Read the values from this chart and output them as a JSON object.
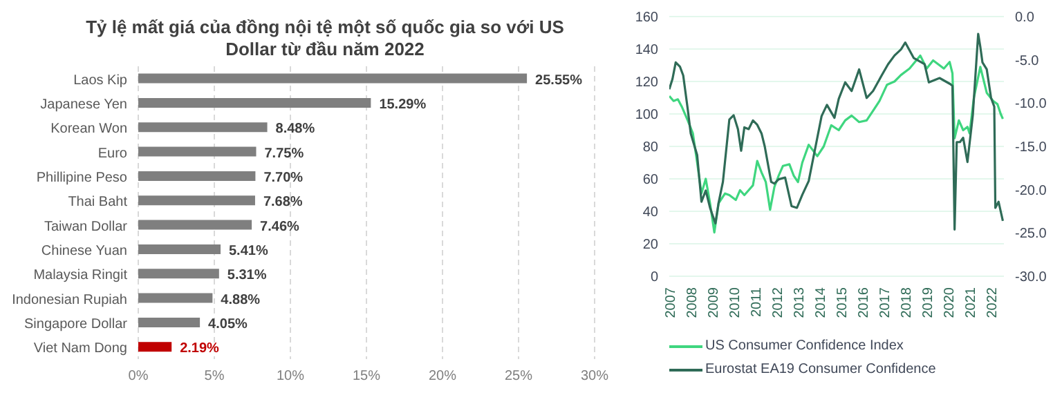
{
  "chart_data": [
    {
      "type": "bar",
      "orientation": "horizontal",
      "title": "Tỷ lệ mất giá của đồng nội tệ một số quốc gia so với US Dollar từ đầu năm 2022",
      "categories": [
        "Laos Kip",
        "Japanese Yen",
        "Korean Won",
        "Euro",
        "Phillipine Peso",
        "Thai Baht",
        "Taiwan Dollar",
        "Chinese Yuan",
        "Malaysia Ringit",
        "Indonesian Rupiah",
        "Singapore Dollar",
        "Viet Nam Dong"
      ],
      "values": [
        25.55,
        15.29,
        8.48,
        7.75,
        7.7,
        7.68,
        7.46,
        5.41,
        5.31,
        4.88,
        4.05,
        2.19
      ],
      "colors": [
        "#7f7f7f",
        "#7f7f7f",
        "#7f7f7f",
        "#7f7f7f",
        "#7f7f7f",
        "#7f7f7f",
        "#7f7f7f",
        "#7f7f7f",
        "#7f7f7f",
        "#7f7f7f",
        "#7f7f7f",
        "#c00000"
      ],
      "value_labels": [
        "25.55%",
        "15.29%",
        "8.48%",
        "7.75%",
        "7.70%",
        "7.68%",
        "7.46%",
        "5.41%",
        "5.31%",
        "4.88%",
        "4.05%",
        "2.19%"
      ],
      "xlim": [
        0,
        30
      ],
      "xticks": [
        {
          "value": 0,
          "label": "0%"
        },
        {
          "value": 5,
          "label": "5%"
        },
        {
          "value": 10,
          "label": "10%"
        },
        {
          "value": 15,
          "label": "15%"
        },
        {
          "value": 20,
          "label": "20%"
        },
        {
          "value": 25,
          "label": "25%"
        },
        {
          "value": 30,
          "label": "30%"
        }
      ],
      "grid": "x"
    },
    {
      "type": "line",
      "marker": "none",
      "line_style": "solid",
      "grid": "y",
      "legend": "bottom",
      "xlim": [
        2007,
        2022.6
      ],
      "xticks": [
        2007,
        2008,
        2009,
        2010,
        2011,
        2012,
        2013,
        2014,
        2015,
        2016,
        2017,
        2018,
        2019,
        2020,
        2021,
        2022
      ],
      "ylim": [
        0,
        160
      ],
      "yticks": [
        0,
        20,
        40,
        60,
        80,
        100,
        120,
        140,
        160
      ],
      "y2lim": [
        -30,
        0
      ],
      "y2ticks": [
        {
          "value": -30,
          "label": "-30.0"
        },
        {
          "value": -25,
          "label": "-25.0"
        },
        {
          "value": -20,
          "label": "-20.0"
        },
        {
          "value": -15,
          "label": "-15.0"
        },
        {
          "value": -10,
          "label": "-10.0"
        },
        {
          "value": -5,
          "label": "-5.0"
        },
        {
          "value": 0,
          "label": "0.0"
        }
      ],
      "series": [
        {
          "name": "US Consumer Confidence Index",
          "color": "#3fd67f",
          "x": [
            2007,
            2007.2,
            2007.4,
            2007.6,
            2007.86,
            2008.1,
            2008.3,
            2008.5,
            2008.7,
            2008.9,
            2009.1,
            2009.3,
            2009.6,
            2009.8,
            2010.1,
            2010.3,
            2010.5,
            2010.7,
            2010.9,
            2011.1,
            2011.3,
            2011.5,
            2011.7,
            2011.9,
            2012.1,
            2012.3,
            2012.6,
            2012.8,
            2013.0,
            2013.2,
            2013.5,
            2013.9,
            2014.2,
            2014.55,
            2014.9,
            2015.2,
            2015.5,
            2015.85,
            2016.2,
            2016.5,
            2016.8,
            2017.15,
            2017.5,
            2017.8,
            2018.2,
            2018.7,
            2019.0,
            2019.3,
            2019.6,
            2019.8,
            2020.07,
            2020.2,
            2020.3,
            2020.5,
            2020.7,
            2020.9,
            2021.0,
            2021.2,
            2021.5,
            2021.8,
            2022.1,
            2022.3,
            2022.45,
            2022.55
          ],
          "values": [
            111,
            108,
            109,
            104,
            96,
            88,
            70,
            51,
            60,
            45,
            27,
            45,
            51,
            50,
            47,
            53,
            50,
            53,
            56,
            71,
            64,
            58,
            41,
            55,
            62,
            68,
            69,
            62,
            58,
            70,
            81,
            74,
            80,
            93,
            90,
            96,
            99,
            95,
            96,
            102,
            108,
            118,
            120,
            124,
            128,
            136,
            128,
            133,
            130,
            128,
            132,
            125,
            85,
            96,
            90,
            92,
            88,
            110,
            129,
            113,
            108,
            106,
            100,
            97
          ]
        },
        {
          "name": "Eurostat EA19 Consumer Confidence",
          "color": "#2f6b57",
          "axis": "y2",
          "x": [
            2007,
            2007.15,
            2007.3,
            2007.5,
            2007.65,
            2007.85,
            2008.0,
            2008.3,
            2008.5,
            2008.7,
            2008.9,
            2009.15,
            2009.3,
            2009.5,
            2009.8,
            2010.0,
            2010.2,
            2010.35,
            2010.5,
            2010.7,
            2010.9,
            2011.1,
            2011.3,
            2011.45,
            2011.75,
            2011.9,
            2012.1,
            2012.4,
            2012.7,
            2012.95,
            2013.2,
            2013.5,
            2013.9,
            2014.1,
            2014.35,
            2014.7,
            2014.9,
            2015.2,
            2015.5,
            2015.85,
            2016.2,
            2016.5,
            2016.9,
            2017.2,
            2017.5,
            2017.8,
            2018.0,
            2018.4,
            2018.9,
            2019.1,
            2019.6,
            2020.1,
            2020.2,
            2020.3,
            2020.4,
            2020.55,
            2020.7,
            2020.9,
            2021.15,
            2021.4,
            2021.5,
            2021.6,
            2021.8,
            2022.0,
            2022.15,
            2022.2,
            2022.35,
            2022.45,
            2022.55
          ],
          "values": [
            -8.4,
            -7.2,
            -5.3,
            -5.8,
            -6.8,
            -10.5,
            -13.5,
            -16,
            -21.4,
            -20.1,
            -22.1,
            -23.9,
            -21.5,
            -19.1,
            -11.9,
            -11.4,
            -13,
            -15.5,
            -12.8,
            -13,
            -12,
            -12.5,
            -13.5,
            -15,
            -19.1,
            -19.3,
            -18.8,
            -18.6,
            -21.9,
            -22.1,
            -20.6,
            -19,
            -14,
            -11.5,
            -10.2,
            -11.7,
            -9.5,
            -7.6,
            -8.6,
            -6.1,
            -9.4,
            -8.6,
            -6.8,
            -5.5,
            -4.5,
            -3.8,
            -3,
            -4.8,
            -5.5,
            -7.6,
            -7.1,
            -7.8,
            -8,
            -24.6,
            -14.5,
            -14.5,
            -14,
            -16.8,
            -11.4,
            -2.0,
            -3.5,
            -5.3,
            -6.1,
            -9.4,
            -10.4,
            -22.1,
            -21.4,
            -22.5,
            -23.6
          ]
        }
      ]
    }
  ]
}
